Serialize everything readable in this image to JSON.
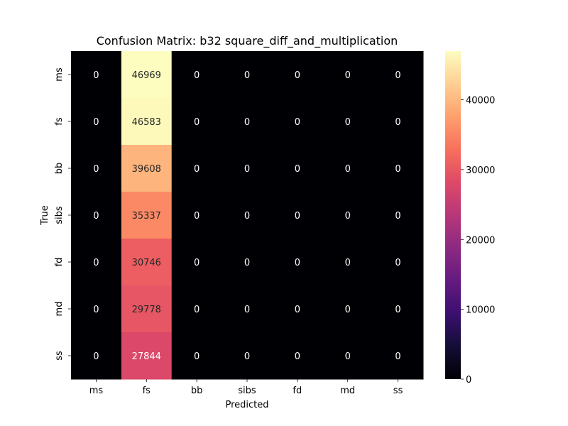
{
  "chart_data": {
    "type": "heatmap",
    "title": "Confusion Matrix: b32 square_diff_and_multiplication",
    "xlabel": "Predicted",
    "ylabel": "True",
    "x_categories": [
      "ms",
      "fs",
      "bb",
      "sibs",
      "fd",
      "md",
      "ss"
    ],
    "y_categories": [
      "ms",
      "fs",
      "bb",
      "sibs",
      "fd",
      "md",
      "ss"
    ],
    "values": [
      [
        0,
        46969,
        0,
        0,
        0,
        0,
        0
      ],
      [
        0,
        46583,
        0,
        0,
        0,
        0,
        0
      ],
      [
        0,
        39608,
        0,
        0,
        0,
        0,
        0
      ],
      [
        0,
        35337,
        0,
        0,
        0,
        0,
        0
      ],
      [
        0,
        30746,
        0,
        0,
        0,
        0,
        0
      ],
      [
        0,
        29778,
        0,
        0,
        0,
        0,
        0
      ],
      [
        0,
        27844,
        0,
        0,
        0,
        0,
        0
      ]
    ],
    "colormap": "magma",
    "colorbar": {
      "range": [
        0,
        46969
      ],
      "ticks": [
        0,
        10000,
        20000,
        30000,
        40000
      ],
      "tick_labels": [
        "0",
        "10000",
        "20000",
        "30000",
        "40000"
      ]
    },
    "annotations": true,
    "grid": false
  }
}
